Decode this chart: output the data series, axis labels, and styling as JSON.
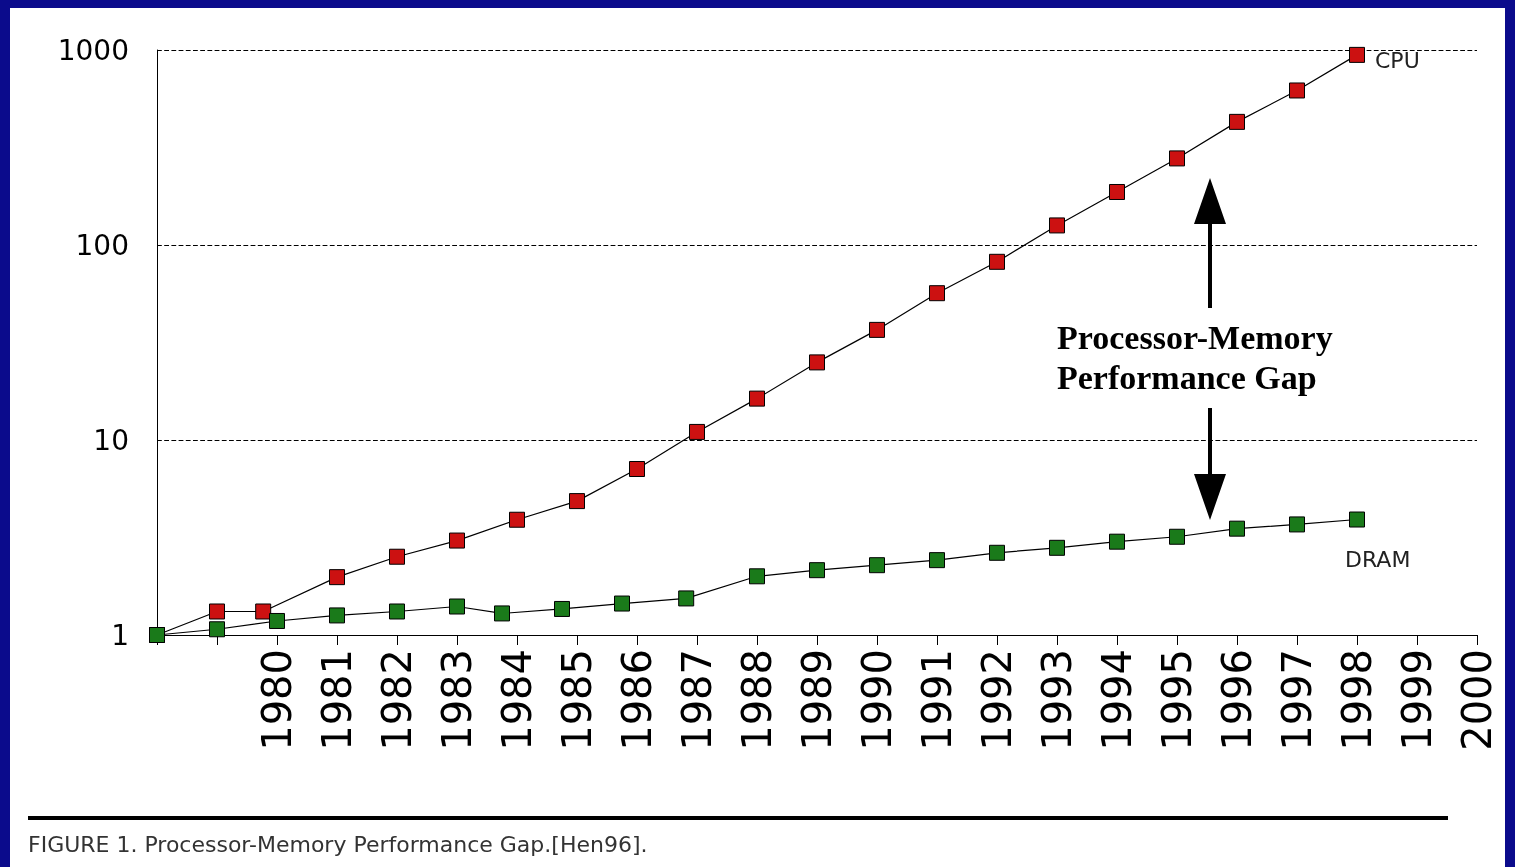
{
  "chart_data": {
    "type": "line",
    "marker": "square",
    "log": "y",
    "grid": "y",
    "line_style": "solid",
    "xlim": [
      1978,
      2000
    ],
    "xticks": [
      {
        "value": 1978,
        "label": null
      },
      {
        "value": 1979,
        "label": null
      },
      1980,
      1981,
      1982,
      1983,
      1984,
      1985,
      1986,
      1987,
      1988,
      1989,
      1990,
      1991,
      1992,
      1993,
      1994,
      1995,
      1996,
      1997,
      1998,
      1999,
      2000
    ],
    "ylim": [
      1,
      1000
    ],
    "yticks": [
      1,
      10,
      100,
      1000
    ],
    "series": [
      {
        "name": "CPU",
        "color": "#cc1111",
        "x": [
          1978,
          1979,
          1979.77,
          1981,
          1982,
          1983,
          1984,
          1985,
          1986,
          1987,
          1988,
          1989,
          1990,
          1991,
          1992,
          1993,
          1994,
          1995,
          1996,
          1997,
          1998
        ],
        "values": [
          1,
          1.32,
          1.32,
          1.98,
          2.52,
          3.05,
          3.9,
          4.86,
          7.1,
          11,
          16.3,
          25,
          36.7,
          56.6,
          82,
          126,
          187,
          278,
          428,
          620,
          944
        ]
      },
      {
        "name": "DRAM",
        "color": "#1a7a1a",
        "x": [
          1978,
          1979,
          1980,
          1981,
          1982,
          1983,
          1983.75,
          1984.75,
          1985.75,
          1986.82,
          1988,
          1989,
          1990,
          1991,
          1992,
          1993,
          1994,
          1995,
          1996,
          1997,
          1998
        ],
        "values": [
          1,
          1.07,
          1.18,
          1.26,
          1.32,
          1.4,
          1.29,
          1.36,
          1.45,
          1.54,
          2,
          2.15,
          2.28,
          2.42,
          2.64,
          2.8,
          3.01,
          3.19,
          3.51,
          3.69,
          3.91
        ]
      }
    ],
    "annotations": [
      "Processor-Memory Performance Gap",
      "FIGURE 1. Processor-Memory Performance Gap.[Hen96]."
    ]
  }
}
